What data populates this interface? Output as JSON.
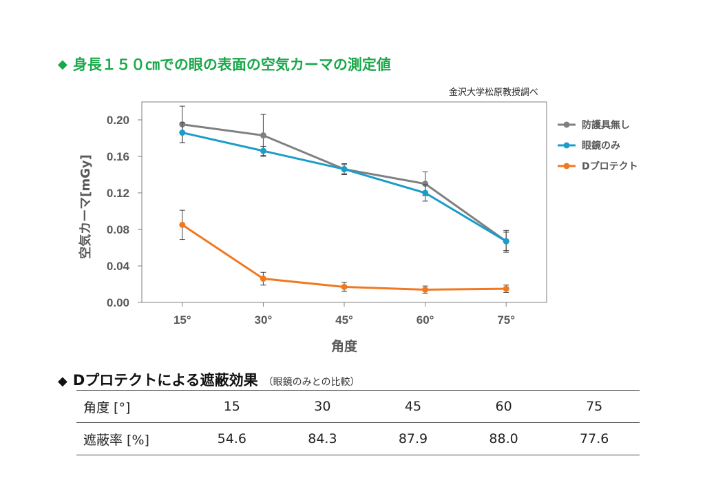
{
  "heading": {
    "diamond": "◆",
    "title": "身長１５０㎝での眼の表面の空気カーマの測定値"
  },
  "source_note": "金沢大学松原教授調べ",
  "chart_data": {
    "type": "line",
    "x_categories": [
      "15°",
      "30°",
      "45°",
      "60°",
      "75°"
    ],
    "xlabel": "角度",
    "ylabel": "空気カーマ[mGy]",
    "ylim": [
      0,
      0.2
    ],
    "yticks": [
      "0.00",
      "0.04",
      "0.08",
      "0.12",
      "0.16",
      "0.20"
    ],
    "ytick_values": [
      0,
      0.04,
      0.08,
      0.12,
      0.16,
      0.2
    ],
    "legend_position": "right",
    "error_bars": true,
    "grid": false,
    "series": [
      {
        "name": "防護具無し",
        "color": "#808080",
        "values": [
          0.195,
          0.183,
          0.146,
          0.13,
          0.067
        ],
        "errors": [
          0.02,
          0.023,
          0.006,
          0.013,
          0.012
        ]
      },
      {
        "name": "眼鏡のみ",
        "color": "#1a9dc8",
        "values": [
          0.186,
          0.166,
          0.146,
          0.12,
          0.067
        ],
        "errors": [
          0.011,
          0.005,
          0.005,
          0.009,
          0.01
        ]
      },
      {
        "name": "Dプロテクト",
        "color": "#f07820",
        "values": [
          0.085,
          0.026,
          0.017,
          0.014,
          0.015
        ],
        "errors": [
          0.016,
          0.007,
          0.005,
          0.004,
          0.004
        ]
      }
    ]
  },
  "shielding": {
    "diamond": "◆",
    "title": "Dプロテクトによる遮蔽効果",
    "subtitle": "（眼鏡のみとの比較）",
    "rows": [
      {
        "label": "角度 [°]",
        "cells": [
          "15",
          "30",
          "45",
          "60",
          "75"
        ]
      },
      {
        "label": "遮蔽率 [%]",
        "cells": [
          "54.6",
          "84.3",
          "87.9",
          "88.0",
          "77.6"
        ]
      }
    ]
  }
}
